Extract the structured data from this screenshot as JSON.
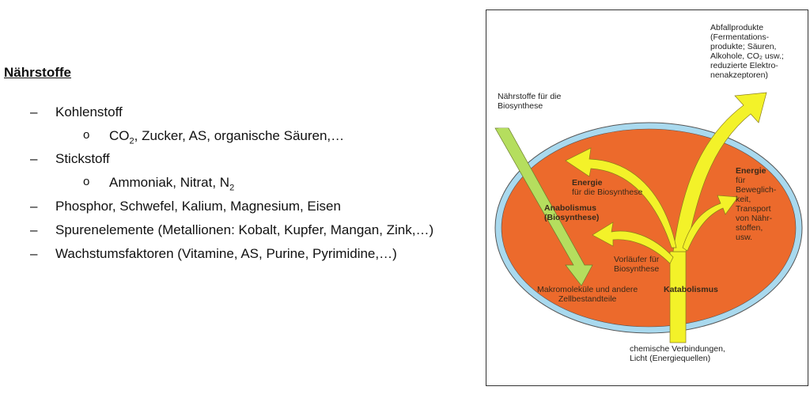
{
  "heading": "Nährstoffe",
  "list": {
    "dash": "–",
    "bullet": "o",
    "i1": "Kohlenstoff",
    "i1a_pre": "CO",
    "i1a_sub": "2",
    "i1a_post": ", Zucker, AS, organische Säuren,…",
    "i2": "Stickstoff",
    "i2a_pre": "Ammoniak, Nitrat, N",
    "i2a_sub": "2",
    "i3": "Phosphor, Schwefel, Kalium, Magnesium, Eisen",
    "i4": "Spurenelemente (Metallionen: Kobalt, Kupfer, Mangan, Zink,…)",
    "i5": "Wachstumsfaktoren (Vitamine, AS, Purine, Pyrimidine,…)"
  },
  "figure": {
    "abfall": [
      "Abfallprodukte",
      "(Fermentations-",
      "produkte; Säuren,",
      "Alkohole, CO₂ usw.;",
      "reduzierte Elektro-",
      "nenakzeptoren)"
    ],
    "naehrstoffe": [
      "Nährstoffe für die",
      "Biosynthese"
    ],
    "energie_bio_title": "Energie",
    "energie_bio_sub": "für die Biosynthese",
    "anabolismus": [
      "Anabolismus",
      "(Biosynthese)"
    ],
    "energie_beweg_title": "Energie",
    "energie_beweg": [
      "für",
      "Beweglich-",
      "keit,",
      "Transport",
      "von Nähr-",
      "stoffen,",
      "usw."
    ],
    "vorlaeufer": [
      "Vorläufer für",
      "Biosynthese"
    ],
    "makro": [
      "Makromoleküle und andere",
      "Zellbestandteile"
    ],
    "katabolismus": "Katabolismus",
    "chemisch": [
      "chemische Verbindungen,",
      "Licht (Energiequellen)"
    ],
    "colors": {
      "cell": "#ec6a2c",
      "membrane": "#a9d9ee",
      "yellow_arrow": "#f3f229",
      "green_arrow": "#b5de5e"
    }
  }
}
